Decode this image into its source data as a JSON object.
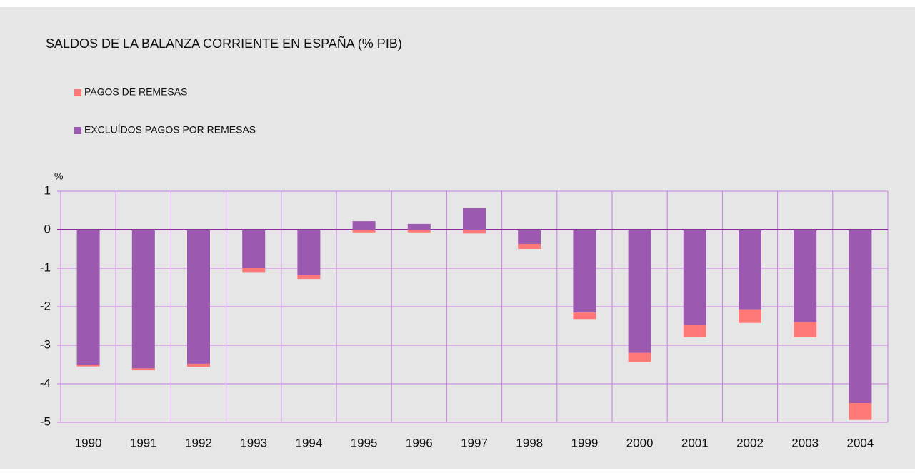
{
  "chart_data": {
    "type": "bar",
    "stacked": true,
    "title": "SALDOS DE LA BALANZA CORRIENTE EN ESPAÑA (% PIB)",
    "y_label": "%",
    "categories": [
      "1990",
      "1991",
      "1992",
      "1993",
      "1994",
      "1995",
      "1996",
      "1997",
      "1998",
      "1999",
      "2000",
      "2001",
      "2002",
      "2003",
      "2004"
    ],
    "series": [
      {
        "name": "EXCLUÍDOS PAGOS POR REMESAS",
        "color": "#9b59b0",
        "values": [
          -3.5,
          -3.6,
          -3.48,
          -1.0,
          -1.18,
          0.22,
          0.15,
          0.56,
          -0.37,
          -2.15,
          -3.2,
          -2.48,
          -2.07,
          -2.4,
          -4.5
        ]
      },
      {
        "name": "PAGOS DE REMESAS",
        "color": "#ff7878",
        "values": [
          -0.05,
          -0.05,
          -0.08,
          -0.1,
          -0.1,
          -0.07,
          -0.07,
          -0.1,
          -0.13,
          -0.17,
          -0.24,
          -0.31,
          -0.35,
          -0.39,
          -0.44
        ]
      }
    ],
    "ylim": [
      -5,
      1
    ],
    "yticks": [
      1,
      0,
      -1,
      -2,
      -3,
      -4,
      -5
    ],
    "grid": true
  }
}
